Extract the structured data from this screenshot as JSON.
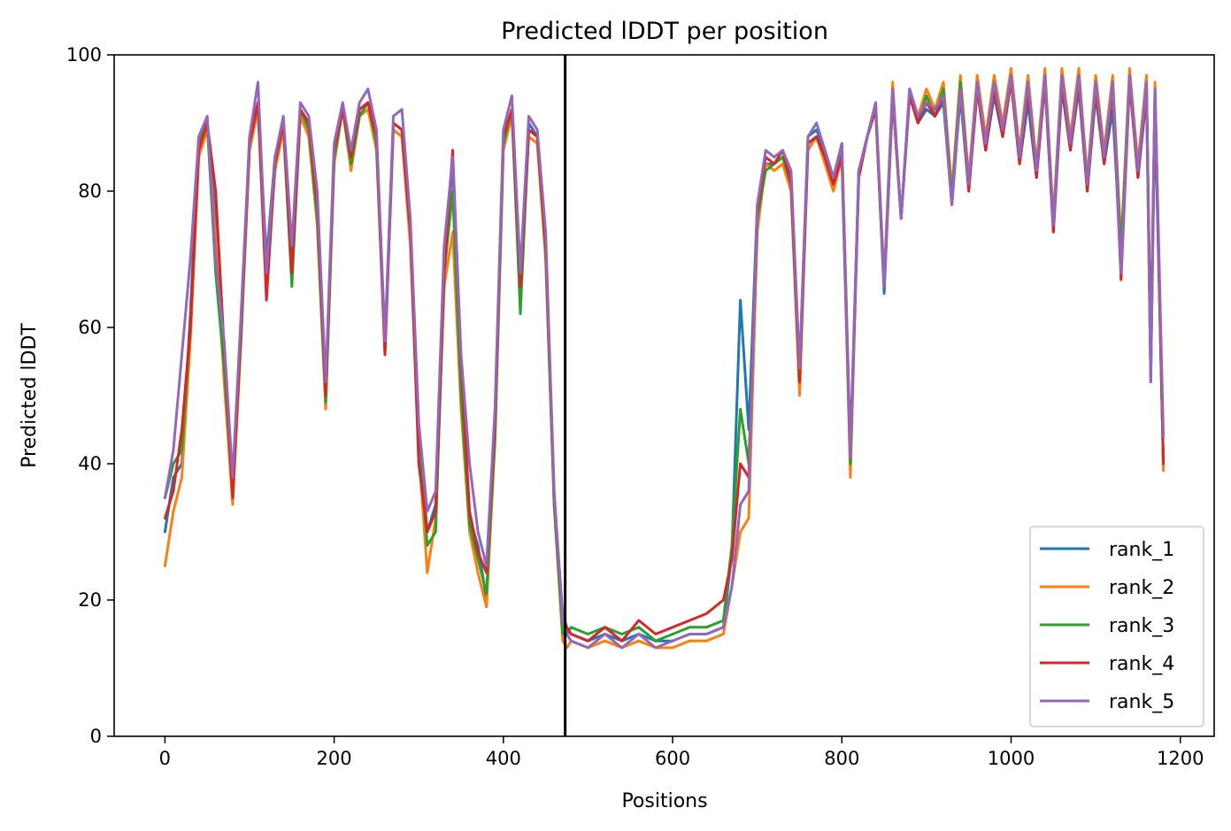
{
  "chart_data": {
    "type": "line",
    "title": "Predicted lDDT per position",
    "xlabel": "Positions",
    "ylabel": "Predicted lDDT",
    "xlim": [
      -60,
      1240
    ],
    "ylim": [
      0,
      100
    ],
    "xticks": [
      0,
      200,
      400,
      600,
      800,
      1000,
      1200
    ],
    "yticks": [
      0,
      20,
      40,
      60,
      80,
      100
    ],
    "grid": false,
    "legend_position": "lower-right",
    "vline_x": 473,
    "series_x": [
      0,
      10,
      20,
      30,
      40,
      50,
      60,
      70,
      80,
      90,
      100,
      110,
      120,
      130,
      140,
      150,
      160,
      170,
      180,
      190,
      200,
      210,
      220,
      230,
      240,
      250,
      260,
      270,
      280,
      290,
      300,
      310,
      320,
      330,
      340,
      350,
      360,
      370,
      380,
      390,
      400,
      410,
      420,
      430,
      440,
      450,
      460,
      470,
      475,
      480,
      500,
      520,
      540,
      560,
      580,
      600,
      620,
      640,
      660,
      670,
      680,
      690,
      700,
      710,
      720,
      730,
      740,
      750,
      760,
      770,
      780,
      790,
      800,
      810,
      820,
      830,
      840,
      850,
      860,
      870,
      880,
      890,
      900,
      910,
      920,
      930,
      940,
      950,
      960,
      970,
      980,
      990,
      1000,
      1010,
      1020,
      1030,
      1040,
      1050,
      1060,
      1070,
      1080,
      1090,
      1100,
      1110,
      1120,
      1130,
      1140,
      1150,
      1160,
      1165,
      1170,
      1180
    ],
    "series": [
      {
        "name": "rank_1",
        "color": "#1f77b4",
        "values": [
          30,
          38,
          40,
          62,
          88,
          90,
          75,
          55,
          37,
          60,
          88,
          93,
          70,
          85,
          90,
          70,
          92,
          90,
          78,
          50,
          85,
          92,
          85,
          92,
          93,
          88,
          58,
          90,
          89,
          75,
          45,
          30,
          34,
          70,
          84,
          50,
          32,
          28,
          20,
          45,
          88,
          92,
          68,
          90,
          88,
          72,
          35,
          18,
          16,
          15,
          14,
          15,
          14,
          15,
          14,
          14,
          15,
          15,
          16,
          27,
          64,
          45,
          78,
          84,
          84,
          85,
          82,
          54,
          88,
          89,
          86,
          82,
          87,
          42,
          83,
          88,
          92,
          65,
          94,
          76,
          94,
          90,
          92,
          91,
          93,
          78,
          94,
          80,
          95,
          86,
          94,
          88,
          97,
          84,
          93,
          82,
          96,
          74,
          95,
          86,
          95,
          80,
          94,
          84,
          92,
          70,
          96,
          82,
          94,
          52,
          92,
          40
        ]
      },
      {
        "name": "rank_2",
        "color": "#ff7f0e",
        "values": [
          25,
          33,
          38,
          58,
          85,
          89,
          73,
          52,
          34,
          58,
          86,
          92,
          66,
          83,
          89,
          67,
          91,
          88,
          75,
          48,
          84,
          92,
          83,
          91,
          92,
          86,
          56,
          89,
          88,
          72,
          42,
          24,
          32,
          66,
          74,
          48,
          30,
          24,
          19,
          43,
          86,
          91,
          66,
          88,
          87,
          70,
          34,
          14,
          13,
          14,
          13,
          14,
          13,
          14,
          13,
          13,
          14,
          14,
          15,
          22,
          30,
          32,
          74,
          84,
          83,
          84,
          80,
          50,
          86,
          88,
          84,
          80,
          85,
          38,
          82,
          88,
          93,
          67,
          96,
          76,
          95,
          91,
          95,
          92,
          96,
          80,
          97,
          82,
          97,
          88,
          97,
          90,
          98,
          86,
          97,
          84,
          98,
          76,
          98,
          88,
          98,
          82,
          97,
          86,
          97,
          72,
          98,
          84,
          97,
          54,
          96,
          39
        ]
      },
      {
        "name": "rank_3",
        "color": "#2ca02c",
        "values": [
          35,
          40,
          42,
          60,
          87,
          90,
          68,
          54,
          36,
          59,
          87,
          93,
          68,
          84,
          90,
          66,
          92,
          89,
          76,
          49,
          85,
          92,
          84,
          91,
          93,
          87,
          57,
          90,
          89,
          74,
          44,
          28,
          30,
          68,
          80,
          50,
          31,
          26,
          21,
          44,
          87,
          92,
          62,
          89,
          88,
          71,
          34,
          15,
          15,
          16,
          15,
          16,
          15,
          16,
          14,
          15,
          16,
          16,
          17,
          28,
          48,
          40,
          76,
          83,
          84,
          85,
          81,
          52,
          87,
          88,
          85,
          81,
          86,
          40,
          83,
          88,
          92,
          66,
          95,
          76,
          94,
          90,
          94,
          91,
          95,
          79,
          96,
          81,
          96,
          87,
          96,
          89,
          97,
          85,
          96,
          83,
          97,
          75,
          97,
          87,
          97,
          81,
          96,
          85,
          96,
          71,
          97,
          83,
          96,
          53,
          95,
          40
        ]
      },
      {
        "name": "rank_4",
        "color": "#d62728",
        "values": [
          32,
          36,
          45,
          60,
          86,
          90,
          80,
          57,
          35,
          60,
          87,
          93,
          64,
          84,
          90,
          68,
          92,
          90,
          78,
          50,
          86,
          92,
          85,
          92,
          93,
          88,
          56,
          90,
          89,
          74,
          40,
          30,
          33,
          68,
          86,
          55,
          33,
          27,
          24,
          46,
          88,
          92,
          66,
          89,
          88,
          72,
          35,
          17,
          16,
          15,
          14,
          16,
          14,
          17,
          15,
          16,
          17,
          18,
          20,
          26,
          40,
          38,
          77,
          85,
          84,
          86,
          81,
          52,
          87,
          88,
          85,
          81,
          85,
          41,
          82,
          88,
          92,
          66,
          94,
          76,
          94,
          90,
          93,
          91,
          94,
          78,
          95,
          80,
          95,
          86,
          95,
          88,
          96,
          84,
          95,
          82,
          96,
          74,
          96,
          86,
          96,
          80,
          95,
          84,
          95,
          67,
          96,
          82,
          95,
          57,
          94,
          40
        ]
      },
      {
        "name": "rank_5",
        "color": "#9467bd",
        "values": [
          35,
          42,
          56,
          70,
          88,
          91,
          70,
          58,
          38,
          62,
          88,
          96,
          68,
          85,
          91,
          72,
          93,
          91,
          80,
          52,
          87,
          93,
          86,
          93,
          95,
          89,
          58,
          91,
          92,
          76,
          46,
          33,
          36,
          72,
          85,
          56,
          40,
          30,
          25,
          48,
          89,
          94,
          68,
          91,
          89,
          74,
          36,
          17,
          15,
          14,
          13,
          15,
          13,
          15,
          13,
          14,
          15,
          15,
          16,
          22,
          34,
          36,
          78,
          86,
          85,
          86,
          83,
          54,
          88,
          90,
          86,
          82,
          87,
          41,
          83,
          88,
          93,
          66,
          95,
          76,
          95,
          91,
          93,
          92,
          94,
          78,
          95,
          81,
          96,
          87,
          96,
          89,
          97,
          85,
          96,
          83,
          97,
          75,
          97,
          87,
          97,
          81,
          96,
          85,
          96,
          68,
          97,
          83,
          96,
          52,
          95,
          44
        ]
      }
    ]
  }
}
